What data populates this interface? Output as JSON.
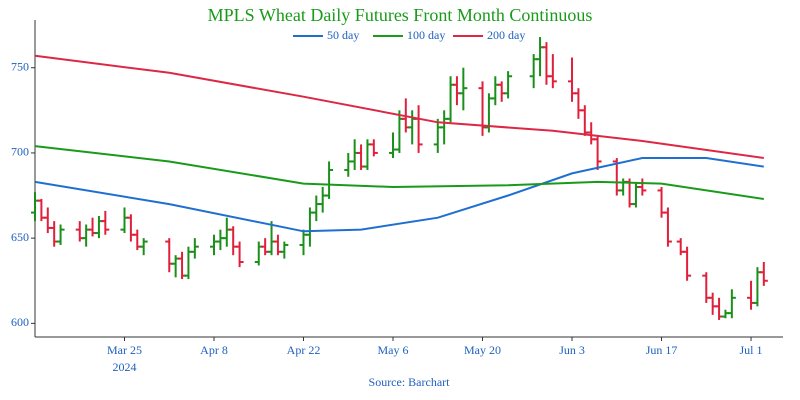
{
  "chart_data": {
    "type": "ohlc",
    "title": "MPLS Wheat Daily Futures Front Month Continuous",
    "source": "Source: Barchart",
    "up_color": "#1a8f1a",
    "down_color": "#e0203a",
    "xlim": [
      "2024-03-11",
      "2024-07-06"
    ],
    "xticks": [
      {
        "value": "2024-03-25",
        "label": "Mar 25",
        "year": "2024"
      },
      {
        "value": "2024-04-08",
        "label": "Apr 8"
      },
      {
        "value": "2024-04-22",
        "label": "Apr 22"
      },
      {
        "value": "2024-05-06",
        "label": "May 6"
      },
      {
        "value": "2024-05-20",
        "label": "May 20"
      },
      {
        "value": "2024-06-03",
        "label": "Jun 3"
      },
      {
        "value": "2024-06-17",
        "label": "Jun 17"
      },
      {
        "value": "2024-07-01",
        "label": "Jul 1"
      }
    ],
    "ylim": [
      592,
      778
    ],
    "yticks": [
      600,
      650,
      700,
      750
    ],
    "x": [
      "2024-03-11",
      "2024-03-12",
      "2024-03-13",
      "2024-03-14",
      "2024-03-15",
      "2024-03-18",
      "2024-03-19",
      "2024-03-20",
      "2024-03-21",
      "2024-03-22",
      "2024-03-25",
      "2024-03-26",
      "2024-03-27",
      "2024-03-28",
      "2024-04-01",
      "2024-04-02",
      "2024-04-03",
      "2024-04-04",
      "2024-04-05",
      "2024-04-08",
      "2024-04-09",
      "2024-04-10",
      "2024-04-11",
      "2024-04-12",
      "2024-04-15",
      "2024-04-16",
      "2024-04-17",
      "2024-04-18",
      "2024-04-19",
      "2024-04-22",
      "2024-04-23",
      "2024-04-24",
      "2024-04-25",
      "2024-04-26",
      "2024-04-29",
      "2024-04-30",
      "2024-05-01",
      "2024-05-02",
      "2024-05-03",
      "2024-05-06",
      "2024-05-07",
      "2024-05-08",
      "2024-05-09",
      "2024-05-10",
      "2024-05-13",
      "2024-05-14",
      "2024-05-15",
      "2024-05-16",
      "2024-05-17",
      "2024-05-20",
      "2024-05-21",
      "2024-05-22",
      "2024-05-23",
      "2024-05-24",
      "2024-05-28",
      "2024-05-29",
      "2024-05-30",
      "2024-05-31",
      "2024-06-03",
      "2024-06-04",
      "2024-06-05",
      "2024-06-06",
      "2024-06-07",
      "2024-06-10",
      "2024-06-11",
      "2024-06-12",
      "2024-06-13",
      "2024-06-14",
      "2024-06-17",
      "2024-06-18",
      "2024-06-20",
      "2024-06-21",
      "2024-06-24",
      "2024-06-25",
      "2024-06-26",
      "2024-06-27",
      "2024-06-28",
      "2024-07-01",
      "2024-07-02",
      "2024-07-03"
    ],
    "open": [
      665,
      672,
      662,
      656,
      648,
      655,
      650,
      655,
      653,
      660,
      655,
      662,
      652,
      645,
      648,
      635,
      638,
      628,
      642,
      645,
      648,
      650,
      655,
      645,
      636,
      645,
      642,
      648,
      642,
      646,
      652,
      665,
      670,
      675,
      690,
      695,
      700,
      692,
      705,
      700,
      702,
      720,
      715,
      720,
      705,
      715,
      720,
      740,
      735,
      738,
      715,
      732,
      740,
      735,
      745,
      755,
      762,
      745,
      742,
      735,
      725,
      712,
      708,
      695,
      678,
      683,
      670,
      680,
      678,
      665,
      648,
      642,
      628,
      615,
      610,
      604,
      606,
      615,
      612,
      630
    ],
    "high": [
      677,
      673,
      668,
      660,
      658,
      660,
      658,
      662,
      663,
      666,
      668,
      664,
      655,
      650,
      650,
      640,
      642,
      645,
      650,
      652,
      655,
      662,
      657,
      648,
      648,
      650,
      660,
      652,
      648,
      655,
      668,
      675,
      680,
      695,
      700,
      708,
      705,
      708,
      708,
      712,
      725,
      732,
      725,
      728,
      720,
      725,
      745,
      745,
      750,
      742,
      735,
      745,
      742,
      748,
      758,
      768,
      765,
      758,
      756,
      738,
      728,
      718,
      710,
      697,
      685,
      685,
      682,
      685,
      680,
      668,
      650,
      645,
      630,
      618,
      615,
      608,
      620,
      625,
      633,
      636
    ],
    "low": [
      660,
      660,
      653,
      645,
      646,
      648,
      645,
      651,
      650,
      652,
      653,
      648,
      643,
      640,
      630,
      627,
      626,
      626,
      638,
      640,
      643,
      645,
      640,
      633,
      634,
      640,
      640,
      640,
      638,
      640,
      645,
      660,
      665,
      673,
      686,
      690,
      690,
      690,
      698,
      697,
      700,
      712,
      705,
      700,
      700,
      705,
      718,
      728,
      725,
      710,
      712,
      728,
      730,
      732,
      738,
      745,
      740,
      738,
      730,
      720,
      710,
      705,
      690,
      675,
      675,
      668,
      668,
      675,
      662,
      645,
      640,
      625,
      612,
      605,
      602,
      603,
      603,
      608,
      610,
      622
    ],
    "close": [
      672,
      662,
      656,
      648,
      655,
      650,
      655,
      653,
      660,
      655,
      662,
      652,
      645,
      648,
      635,
      638,
      628,
      642,
      645,
      648,
      650,
      655,
      645,
      636,
      645,
      642,
      648,
      642,
      646,
      652,
      665,
      670,
      675,
      690,
      695,
      700,
      692,
      705,
      700,
      702,
      720,
      715,
      720,
      705,
      715,
      720,
      740,
      735,
      738,
      715,
      732,
      740,
      735,
      745,
      755,
      762,
      745,
      742,
      735,
      725,
      712,
      708,
      695,
      678,
      683,
      670,
      680,
      678,
      665,
      648,
      642,
      628,
      615,
      610,
      604,
      606,
      615,
      612,
      630,
      625
    ],
    "moving_averages": [
      {
        "name": "50 day",
        "color": "#1f6fd1",
        "x": [
          "2024-03-11",
          "2024-04-01",
          "2024-04-22",
          "2024-05-01",
          "2024-05-13",
          "2024-05-24",
          "2024-06-03",
          "2024-06-14",
          "2024-06-24",
          "2024-07-03"
        ],
        "values": [
          683,
          670,
          654,
          655,
          662,
          675,
          688,
          697,
          697,
          692
        ]
      },
      {
        "name": "100 day",
        "color": "#1a9a1a",
        "x": [
          "2024-03-11",
          "2024-04-01",
          "2024-04-22",
          "2024-05-06",
          "2024-05-24",
          "2024-06-07",
          "2024-06-17",
          "2024-07-03"
        ],
        "values": [
          704,
          695,
          682,
          680,
          681,
          683,
          682,
          673
        ]
      },
      {
        "name": "200 day",
        "color": "#dc2845",
        "x": [
          "2024-03-11",
          "2024-04-01",
          "2024-04-22",
          "2024-05-13",
          "2024-05-31",
          "2024-06-14",
          "2024-07-03"
        ],
        "values": [
          757,
          747,
          733,
          718,
          713,
          707,
          697
        ]
      }
    ]
  }
}
